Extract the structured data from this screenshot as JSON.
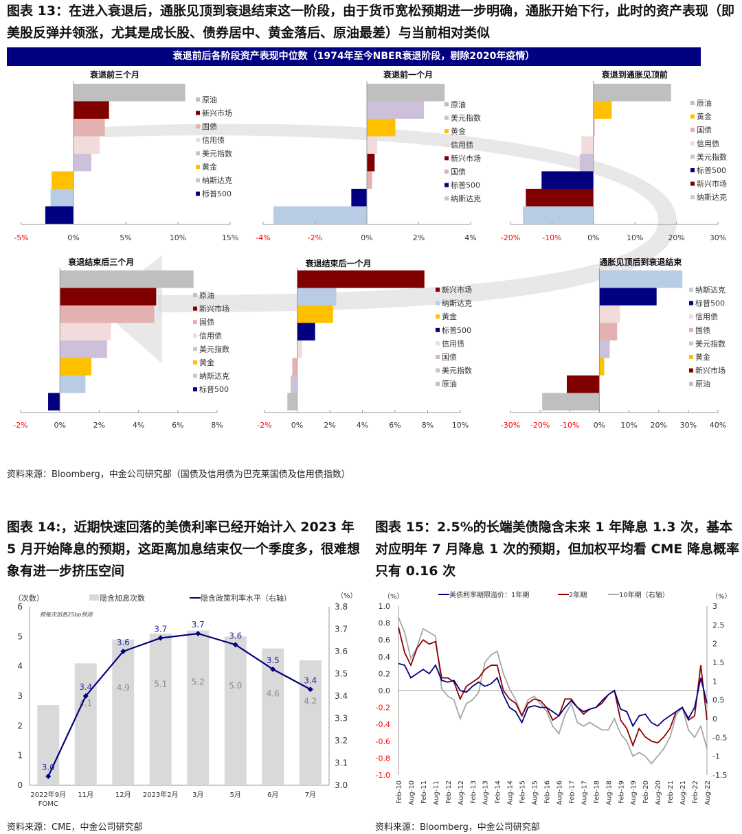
{
  "figure13": {
    "title": "图表 13：在进入衰退后，通胀见顶到衰退结束这一阶段，由于货币宽松预期进一步明确，通胀开始下行，此时的资产表现（即美股反弹并领涨，尤其是成长股、债券居中、黄金落后、原油最差）与当前相对类似",
    "banner": "衰退前后各阶段资产表现中位数（1974年至今NBER衰退阶段，剔除2020年疫情）",
    "source": "资料来源：Bloomberg，中金公司研究部（国债及信用债为巴克莱国债及信用债指数）"
  },
  "figure14": {
    "title": "图表 14:，近期快速回落的美债利率已经开始计入 2023 年 5 月开始降息的预期，这距离加息结束仅一个季度多，很难想象有进一步挤压空间",
    "source": "资料来源：CME，中金公司研究部"
  },
  "figure15": {
    "title": "图表 15：2.5%的长端美债隐含未来 1 年降息 1.3 次，基本对应明年 7 月降息 1 次的预期，但加权平均看 CME 降息概率只有 0.16 次",
    "source": "资料来源：Bloomberg，中金公司研究部"
  },
  "colors": {
    "原油": "#bfbfbf",
    "新兴市场": "#800000",
    "国债": "#e3b1b0",
    "信用债": "#f2dcdb",
    "美元指数": "#ccc0da",
    "黄金": "#ffc000",
    "纳斯达克": "#b8cce4",
    "标普500": "#000080",
    "negative_tick": "#ff0000"
  },
  "chart_data": [
    {
      "type": "bar",
      "orientation": "horizontal",
      "title": "衰退前三个月",
      "categories": [
        "原油",
        "新兴市场",
        "国债",
        "信用债",
        "美元指数",
        "黄金",
        "纳斯达克",
        "标普500"
      ],
      "values": [
        10.7,
        3.4,
        3.0,
        2.5,
        1.7,
        -2.1,
        -2.2,
        -2.7
      ],
      "xlim": [
        -5,
        15
      ],
      "ticks": [
        "-5%",
        "0%",
        "5%",
        "10%",
        "15%"
      ],
      "legend": "right"
    },
    {
      "type": "bar",
      "orientation": "horizontal",
      "title": "衰退前一个月",
      "categories": [
        "原油",
        "美元指数",
        "黄金",
        "信用债",
        "新兴市场",
        "国债",
        "标普500",
        "纳斯达克"
      ],
      "values": [
        3.0,
        2.2,
        1.1,
        0.4,
        0.3,
        0.2,
        -0.6,
        -3.6
      ],
      "xlim": [
        -4,
        4
      ],
      "ticks": [
        "-4%",
        "-2%",
        "0%",
        "2%",
        "4%"
      ],
      "legend": "right"
    },
    {
      "type": "bar",
      "orientation": "horizontal",
      "title": "衰退到通胀见顶前",
      "categories": [
        "原油",
        "黄金",
        "国债",
        "信用债",
        "美元指数",
        "标普500",
        "新兴市场",
        "纳斯达克"
      ],
      "values": [
        18.7,
        4.4,
        0.3,
        -2.9,
        -3.3,
        -12.5,
        -16.3,
        -17.0
      ],
      "xlim": [
        -20,
        30
      ],
      "ticks": [
        "-20%",
        "-10%",
        "0%",
        "10%",
        "20%",
        "30%"
      ],
      "legend": "right"
    },
    {
      "type": "bar",
      "orientation": "horizontal",
      "title": "衰退结束后三个月",
      "categories": [
        "原油",
        "新兴市场",
        "国债",
        "信用债",
        "美元指数",
        "黄金",
        "纳斯达克",
        "标普500"
      ],
      "values": [
        6.8,
        4.9,
        4.8,
        2.6,
        2.4,
        1.6,
        1.3,
        -0.6
      ],
      "xlim": [
        -2,
        8
      ],
      "ticks": [
        "-2%",
        "0%",
        "2%",
        "4%",
        "6%",
        "8%"
      ],
      "legend": "right"
    },
    {
      "type": "bar",
      "orientation": "horizontal",
      "title": "衰退结束后一个月",
      "categories": [
        "新兴市场",
        "纳斯达克",
        "黄金",
        "标普500",
        "信用债",
        "国债",
        "美元指数",
        "原油"
      ],
      "values": [
        7.8,
        2.4,
        2.2,
        1.1,
        0.3,
        -0.3,
        -0.4,
        -0.6
      ],
      "xlim": [
        -2,
        10
      ],
      "ticks": [
        "-2%",
        "0%",
        "2%",
        "4%",
        "6%",
        "8%",
        "10%"
      ],
      "legend": "right"
    },
    {
      "type": "bar",
      "orientation": "horizontal",
      "title": "通胀见顶后到衰退结束",
      "categories": [
        "纳斯达克",
        "标普500",
        "信用债",
        "国债",
        "美元指数",
        "黄金",
        "新兴市场",
        "原油"
      ],
      "values": [
        28,
        19.3,
        7,
        6,
        3.5,
        1.6,
        -11,
        -19.3
      ],
      "xlim": [
        -30,
        40
      ],
      "ticks": [
        "-30%",
        "-20%",
        "-10%",
        "0%",
        "10%",
        "20%",
        "30%",
        "40%"
      ],
      "legend": "right"
    },
    {
      "type": "bar+line",
      "categories": [
        "2022年9月\nFOMC",
        "11月",
        "12月",
        "2023年2月",
        "3月",
        "5月",
        "6月",
        "7月"
      ],
      "series": [
        {
          "name": "隐含加息次数",
          "axis": "left",
          "values": [
            2.7,
            4.1,
            4.9,
            5.1,
            5.2,
            5.0,
            4.6,
            4.2
          ],
          "labels": [
            "",
            "4.1",
            "4.9",
            "5.1",
            "5.2",
            "5.0",
            "4.6",
            "4.2"
          ]
        },
        {
          "name": "隐含政策利率水平（右轴）",
          "axis": "right",
          "values": [
            3.04,
            3.4,
            3.6,
            3.66,
            3.68,
            3.63,
            3.52,
            3.43
          ],
          "labels": [
            "3.0",
            "3.4",
            "3.6",
            "3.7",
            "3.7",
            "3.6",
            "3.5",
            "3.4"
          ]
        }
      ],
      "ylabel": "（次数）",
      "ylabel_right": "（%）",
      "ylim": [
        0,
        6
      ],
      "ylim_right": [
        3.0,
        3.8
      ],
      "yticks": [
        "0",
        "1",
        "2",
        "3",
        "4",
        "5",
        "6"
      ],
      "yticks_right": [
        "3.0",
        "3.1",
        "3.2",
        "3.3",
        "3.4",
        "3.5",
        "3.6",
        "3.7",
        "3.8"
      ],
      "annotation": "按每次加息25bp预测",
      "colors": {
        "bar": "#d9d9d9",
        "line": "#000080"
      },
      "legend": "top"
    },
    {
      "type": "line",
      "x_ticks": [
        "Feb-10",
        "Aug-10",
        "Feb-11",
        "Aug-11",
        "Feb-12",
        "Aug-12",
        "Feb-13",
        "Aug-13",
        "Feb-14",
        "Aug-14",
        "Feb-15",
        "Aug-15",
        "Feb-16",
        "Aug-16",
        "Feb-17",
        "Aug-17",
        "Feb-18",
        "Aug-18",
        "Feb-19",
        "Aug-19",
        "Feb-20",
        "Aug-20",
        "Feb-21",
        "Aug-21",
        "Feb-22",
        "Aug-22"
      ],
      "x_start": "2010-02",
      "x_step_months": 3,
      "series": [
        {
          "name": "美债利率期限溢价：1年期",
          "axis": "left",
          "color": "#000080",
          "values": [
            0.32,
            0.3,
            0.15,
            0.2,
            0.25,
            0.2,
            0.3,
            0.12,
            0.1,
            0.12,
            0.0,
            -0.02,
            0.05,
            0.1,
            0.05,
            0.08,
            0.15,
            -0.05,
            -0.2,
            -0.25,
            -0.38,
            -0.2,
            -0.18,
            -0.2,
            -0.2,
            -0.25,
            -0.3,
            -0.2,
            -0.12,
            -0.2,
            -0.25,
            -0.22,
            -0.2,
            -0.12,
            -0.05,
            0.0,
            -0.22,
            -0.25,
            -0.42,
            -0.3,
            -0.28,
            -0.38,
            -0.42,
            -0.35,
            -0.3,
            -0.25,
            -0.2,
            -0.33,
            -0.2,
            0.15,
            -0.15
          ]
        },
        {
          "name": "2年期",
          "axis": "left",
          "color": "#8b0000",
          "values": [
            0.75,
            0.45,
            0.3,
            0.5,
            0.6,
            0.55,
            0.58,
            0.15,
            0.15,
            0.1,
            -0.1,
            0.05,
            0.1,
            0.15,
            0.25,
            0.3,
            0.3,
            0.0,
            -0.1,
            -0.15,
            -0.3,
            -0.15,
            -0.1,
            -0.12,
            -0.2,
            -0.35,
            -0.3,
            -0.1,
            -0.1,
            -0.2,
            -0.28,
            -0.22,
            -0.2,
            -0.15,
            -0.05,
            0.0,
            -0.35,
            -0.45,
            -0.65,
            -0.45,
            -0.55,
            -0.6,
            -0.62,
            -0.55,
            -0.45,
            -0.25,
            -0.2,
            -0.35,
            -0.3,
            0.3,
            -0.35
          ]
        },
        {
          "name": "10年期（右轴）",
          "axis": "right",
          "color": "#a6a6a6",
          "values": [
            2.7,
            2.3,
            1.6,
            1.9,
            2.4,
            2.3,
            2.2,
            0.8,
            0.6,
            0.5,
            0.0,
            0.4,
            0.5,
            0.7,
            1.5,
            1.7,
            1.8,
            1.2,
            0.8,
            0.5,
            0.1,
            0.5,
            0.6,
            0.4,
            0.2,
            -0.2,
            -0.4,
            0.1,
            0.4,
            -0.1,
            -0.2,
            -0.1,
            -0.2,
            -0.3,
            -0.3,
            0.0,
            -0.4,
            -0.6,
            -1.0,
            -0.9,
            -1.0,
            -1.2,
            -1.0,
            -0.8,
            -0.5,
            0.1,
            0.3,
            -0.3,
            -0.5,
            -0.2,
            -0.8
          ]
        }
      ],
      "ylabel": "（%）",
      "ylabel_right": "（%）",
      "ylim": [
        -1.0,
        1.0
      ],
      "ylim_right": [
        -1.5,
        3
      ],
      "yticks": [
        "-1.0",
        "-0.8",
        "-0.6",
        "-0.4",
        "-0.2",
        "0.0",
        "0.2",
        "0.4",
        "0.6",
        "0.8",
        "1.0"
      ],
      "yticks_right": [
        "-1.5",
        "-1",
        "-0.5",
        "0",
        "0.5",
        "1",
        "1.5",
        "2",
        "2.5",
        "3"
      ],
      "legend": "top"
    }
  ]
}
